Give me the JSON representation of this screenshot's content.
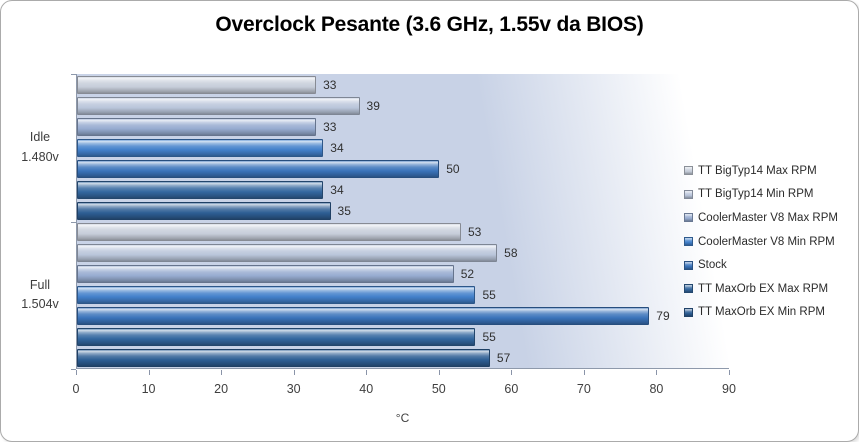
{
  "chart_data": {
    "type": "bar",
    "orientation": "horizontal",
    "title": "Overclock Pesante (3.6 GHz, 1.55v da BIOS)",
    "xlabel": "°C",
    "xlim": [
      0,
      90
    ],
    "xticks": [
      0,
      10,
      20,
      30,
      40,
      50,
      60,
      70,
      80,
      90
    ],
    "grid": false,
    "legend_position": "right",
    "groups": [
      {
        "label_lines": [
          "Idle",
          "1.480v"
        ]
      },
      {
        "label_lines": [
          "Full",
          "1.504v"
        ]
      }
    ],
    "series": [
      {
        "name": "TT BigTyp14 Max RPM",
        "color": "#c6cdd9",
        "values": [
          33,
          53
        ]
      },
      {
        "name": "TT BigTyp14 Min RPM",
        "color": "#b9c5da",
        "values": [
          39,
          58
        ]
      },
      {
        "name": "CoolerMaster V8 Max RPM",
        "color": "#96abd0",
        "values": [
          33,
          52
        ]
      },
      {
        "name": "CoolerMaster V8 Min RPM",
        "color": "#4280ca",
        "values": [
          34,
          55
        ]
      },
      {
        "name": "Stock",
        "color": "#3a73ba",
        "values": [
          50,
          79
        ]
      },
      {
        "name": "TT MaxOrb EX Max RPM",
        "color": "#33679f",
        "values": [
          34,
          55
        ]
      },
      {
        "name": "TT MaxOrb EX Min RPM",
        "color": "#2d5e94",
        "values": [
          35,
          57
        ]
      }
    ],
    "plot_background": {
      "left_color": "#c9d3e7",
      "right_color": "#ffffff"
    }
  }
}
